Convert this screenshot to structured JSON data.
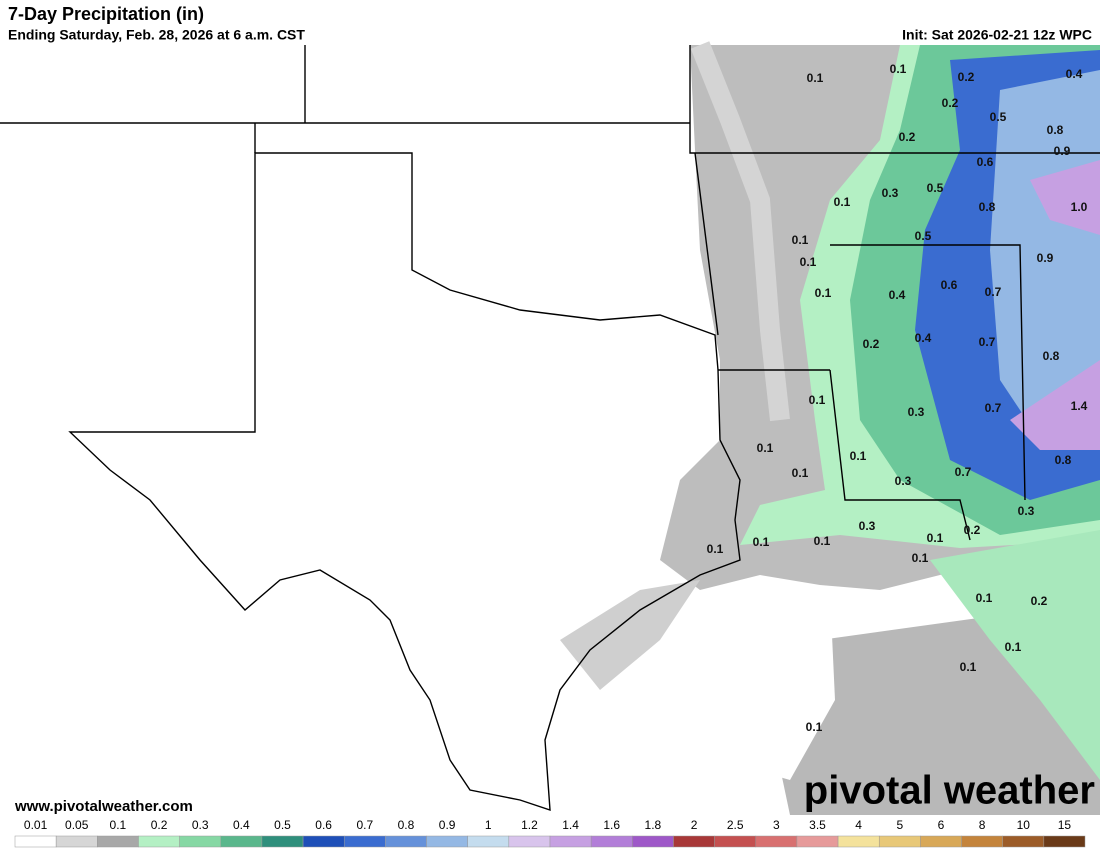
{
  "header": {
    "title": "7-Day Precipitation (in)",
    "subtitle": "Ending Saturday, Feb. 28, 2026 at 6 a.m. CST",
    "init": "Init: Sat 2026-02-21 12z WPC"
  },
  "map": {
    "labels": [
      "0.1",
      "0.1",
      "0.2",
      "0.4",
      "0.2",
      "0.5",
      "0.8",
      "0.2",
      "0.6",
      "0.9",
      "0.3",
      "0.5",
      "0.1",
      "0.8",
      "1.0",
      "0.1",
      "0.5",
      "0.1",
      "0.9",
      "0.6",
      "0.1",
      "0.4",
      "0.7",
      "0.2",
      "0.4",
      "0.7",
      "0.8",
      "0.1",
      "0.3",
      "0.7",
      "1.4",
      "0.1",
      "0.1",
      "0.1",
      "0.7",
      "0.8",
      "0.3",
      "0.3",
      "0.3",
      "0.2",
      "0.1",
      "0.1",
      "0.1",
      "0.1",
      "0.1",
      "0.1",
      "0.2",
      "0.1",
      "0.1",
      "0.1"
    ]
  },
  "footer": {
    "url": "www.pivotalweather.com",
    "logo": "pivotal weather"
  },
  "legend": {
    "levels": [
      {
        "label": "0.01",
        "color": "#ffffff"
      },
      {
        "label": "0.05",
        "color": "#d6d6d6"
      },
      {
        "label": "0.1",
        "color": "#a8a8a8"
      },
      {
        "label": "0.2",
        "color": "#b4f0c4"
      },
      {
        "label": "0.3",
        "color": "#86d8a4"
      },
      {
        "label": "0.4",
        "color": "#5ab78c"
      },
      {
        "label": "0.5",
        "color": "#2f8f7c"
      },
      {
        "label": "0.6",
        "color": "#1e4fb8"
      },
      {
        "label": "0.7",
        "color": "#3a6cd0"
      },
      {
        "label": "0.8",
        "color": "#6591da"
      },
      {
        "label": "0.9",
        "color": "#94b8e4"
      },
      {
        "label": "1",
        "color": "#c4dcee"
      },
      {
        "label": "1.2",
        "color": "#d8c4ec"
      },
      {
        "label": "1.4",
        "color": "#c6a0e2"
      },
      {
        "label": "1.6",
        "color": "#b27ed8"
      },
      {
        "label": "1.8",
        "color": "#9e58c8"
      },
      {
        "label": "2",
        "color": "#a83838"
      },
      {
        "label": "2.5",
        "color": "#c45050"
      },
      {
        "label": "3",
        "color": "#d87070"
      },
      {
        "label": "3.5",
        "color": "#e69a9a"
      },
      {
        "label": "4",
        "color": "#f4e29c"
      },
      {
        "label": "5",
        "color": "#e8c878"
      },
      {
        "label": "6",
        "color": "#d8a858"
      },
      {
        "label": "8",
        "color": "#c4843c"
      },
      {
        "label": "10",
        "color": "#9c5c28"
      },
      {
        "label": "15",
        "color": "#6a3a18"
      }
    ]
  }
}
